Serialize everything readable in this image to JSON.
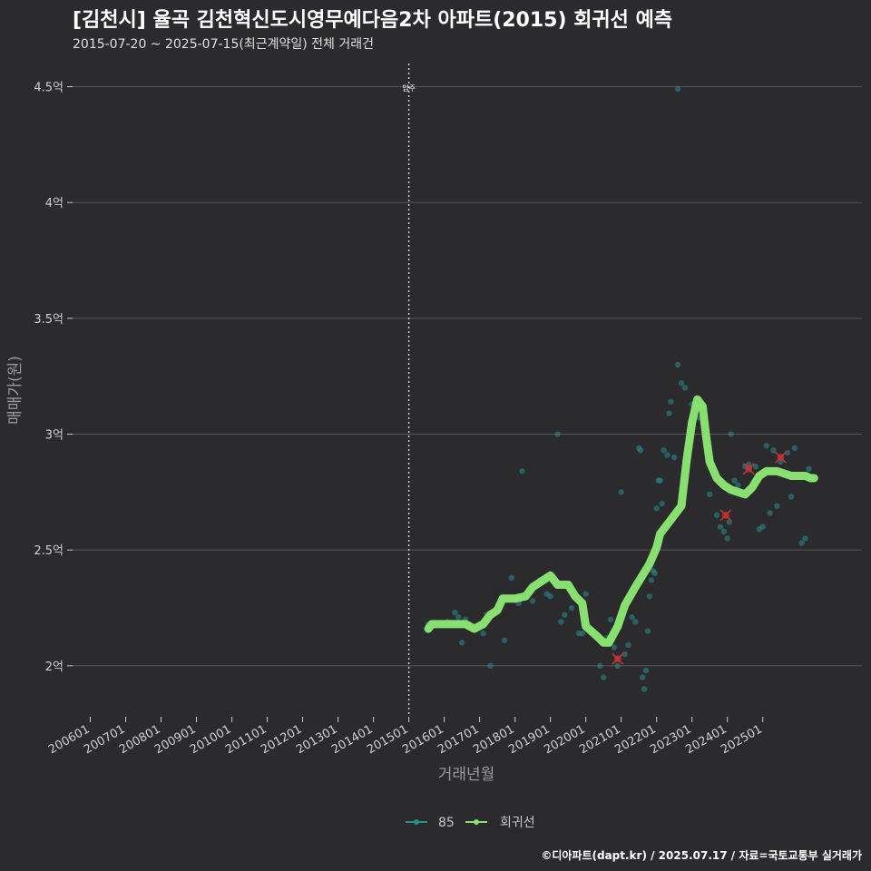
{
  "chart_data": {
    "type": "scatter",
    "title": "[김천시] 율곡 김천혁신도시영무예다음2차 아파트(2015) 회귀선 예측",
    "subtitle": "2015-07-20 ~ 2025-07-15(최근계약일) 전체 거래건",
    "xlabel": "거래년월",
    "ylabel": "매매가(원)",
    "caption": "©디아파트(dapt.kr) / 2025.07.17 / 자료=국토교통부 실거래가",
    "x_ticks": [
      "200601",
      "200701",
      "200801",
      "200901",
      "201001",
      "201101",
      "201201",
      "201301",
      "201401",
      "201501",
      "201601",
      "201701",
      "201801",
      "201901",
      "202001",
      "202101",
      "202201",
      "202301",
      "202401",
      "202501"
    ],
    "y_ticks": [
      {
        "value": 2.0,
        "label": "2억"
      },
      {
        "value": 2.5,
        "label": "2.5억"
      },
      {
        "value": 3.0,
        "label": "3억"
      },
      {
        "value": 3.5,
        "label": "3.5억"
      },
      {
        "value": 4.0,
        "label": "4억"
      },
      {
        "value": 4.5,
        "label": "4.5억"
      }
    ],
    "xlim": [
      2005.5,
      2027.8
    ],
    "ylim": [
      1.78,
      4.6
    ],
    "annotation": {
      "x": 2015.0,
      "label": "입주"
    },
    "legend": [
      "85",
      "회귀선"
    ],
    "colors": {
      "scatter": "#2a8c8c",
      "line": "#88e070",
      "highlight": "#cc3333",
      "grid": "#555555",
      "vline": "#cccccc"
    },
    "series": [
      {
        "name": "85",
        "points": [
          [
            2015.55,
            2.18
          ],
          [
            2015.8,
            2.18
          ],
          [
            2016.1,
            2.19
          ],
          [
            2016.3,
            2.23
          ],
          [
            2016.4,
            2.21
          ],
          [
            2016.5,
            2.1
          ],
          [
            2016.6,
            2.2
          ],
          [
            2016.7,
            2.18
          ],
          [
            2016.9,
            2.17
          ],
          [
            2017.1,
            2.14
          ],
          [
            2017.2,
            2.22
          ],
          [
            2017.3,
            2.0
          ],
          [
            2017.5,
            2.24
          ],
          [
            2017.7,
            2.11
          ],
          [
            2017.8,
            2.29
          ],
          [
            2017.9,
            2.38
          ],
          [
            2018.1,
            2.27
          ],
          [
            2018.2,
            2.84
          ],
          [
            2018.4,
            2.33
          ],
          [
            2018.5,
            2.28
          ],
          [
            2018.7,
            2.37
          ],
          [
            2018.9,
            2.31
          ],
          [
            2019.0,
            2.3
          ],
          [
            2019.2,
            3.0
          ],
          [
            2019.3,
            2.19
          ],
          [
            2019.4,
            2.22
          ],
          [
            2019.6,
            2.25
          ],
          [
            2019.8,
            2.14
          ],
          [
            2019.9,
            2.14
          ],
          [
            2020.0,
            2.31
          ],
          [
            2020.2,
            2.15
          ],
          [
            2020.3,
            2.12
          ],
          [
            2020.4,
            2.0
          ],
          [
            2020.5,
            1.95
          ],
          [
            2020.6,
            2.12
          ],
          [
            2020.7,
            2.2
          ],
          [
            2020.8,
            2.08
          ],
          [
            2020.9,
            2.0
          ],
          [
            2021.0,
            2.75
          ],
          [
            2021.1,
            2.05
          ],
          [
            2021.2,
            2.09
          ],
          [
            2021.3,
            2.21
          ],
          [
            2021.4,
            2.19
          ],
          [
            2021.5,
            2.94
          ],
          [
            2021.55,
            2.93
          ],
          [
            2021.6,
            1.95
          ],
          [
            2021.65,
            1.9
          ],
          [
            2021.7,
            1.98
          ],
          [
            2021.75,
            2.15
          ],
          [
            2021.8,
            2.3
          ],
          [
            2021.85,
            2.37
          ],
          [
            2021.9,
            2.41
          ],
          [
            2021.95,
            2.4
          ],
          [
            2022.0,
            2.68
          ],
          [
            2022.05,
            2.8
          ],
          [
            2022.1,
            2.8
          ],
          [
            2022.15,
            2.7
          ],
          [
            2022.2,
            2.93
          ],
          [
            2022.3,
            2.91
          ],
          [
            2022.35,
            3.09
          ],
          [
            2022.4,
            3.14
          ],
          [
            2022.5,
            2.9
          ],
          [
            2022.6,
            3.3
          ],
          [
            2022.7,
            3.22
          ],
          [
            2022.8,
            3.2
          ],
          [
            2023.0,
            3.13
          ],
          [
            2023.2,
            3.07
          ],
          [
            2023.3,
            3.05
          ],
          [
            2023.5,
            2.74
          ],
          [
            2023.7,
            2.65
          ],
          [
            2023.8,
            2.6
          ],
          [
            2023.9,
            2.58
          ],
          [
            2024.0,
            2.55
          ],
          [
            2024.05,
            2.62
          ],
          [
            2024.1,
            3.0
          ],
          [
            2024.2,
            2.8
          ],
          [
            2024.3,
            2.78
          ],
          [
            2024.5,
            2.86
          ],
          [
            2024.6,
            2.87
          ],
          [
            2024.8,
            2.86
          ],
          [
            2024.9,
            2.59
          ],
          [
            2025.0,
            2.6
          ],
          [
            2025.1,
            2.95
          ],
          [
            2025.2,
            2.66
          ],
          [
            2025.3,
            2.93
          ],
          [
            2025.4,
            2.69
          ],
          [
            2025.5,
            2.88
          ],
          [
            2025.7,
            2.92
          ],
          [
            2025.8,
            2.73
          ],
          [
            2025.9,
            2.94
          ],
          [
            2026.1,
            2.53
          ],
          [
            2026.2,
            2.55
          ],
          [
            2026.3,
            2.85
          ],
          [
            2026.4,
            2.81
          ],
          [
            2022.6,
            4.49
          ]
        ]
      },
      {
        "name": "회귀선",
        "points": [
          [
            2015.55,
            2.16
          ],
          [
            2015.65,
            2.18
          ],
          [
            2016.0,
            2.18
          ],
          [
            2016.3,
            2.18
          ],
          [
            2016.6,
            2.18
          ],
          [
            2016.85,
            2.16
          ],
          [
            2017.1,
            2.18
          ],
          [
            2017.3,
            2.22
          ],
          [
            2017.5,
            2.24
          ],
          [
            2017.65,
            2.29
          ],
          [
            2018.0,
            2.29
          ],
          [
            2018.3,
            2.3
          ],
          [
            2018.5,
            2.34
          ],
          [
            2018.8,
            2.37
          ],
          [
            2019.0,
            2.39
          ],
          [
            2019.2,
            2.35
          ],
          [
            2019.5,
            2.35
          ],
          [
            2019.7,
            2.3
          ],
          [
            2019.9,
            2.27
          ],
          [
            2020.0,
            2.17
          ],
          [
            2020.3,
            2.13
          ],
          [
            2020.5,
            2.1
          ],
          [
            2020.65,
            2.1
          ],
          [
            2020.9,
            2.17
          ],
          [
            2021.1,
            2.26
          ],
          [
            2021.4,
            2.34
          ],
          [
            2021.6,
            2.39
          ],
          [
            2021.8,
            2.44
          ],
          [
            2022.0,
            2.51
          ],
          [
            2022.1,
            2.57
          ],
          [
            2022.4,
            2.63
          ],
          [
            2022.7,
            2.69
          ],
          [
            2022.85,
            2.89
          ],
          [
            2023.0,
            3.05
          ],
          [
            2023.15,
            3.15
          ],
          [
            2023.3,
            3.12
          ],
          [
            2023.4,
            2.99
          ],
          [
            2023.5,
            2.88
          ],
          [
            2023.7,
            2.81
          ],
          [
            2023.9,
            2.78
          ],
          [
            2024.1,
            2.76
          ],
          [
            2024.3,
            2.75
          ],
          [
            2024.5,
            2.74
          ],
          [
            2024.7,
            2.77
          ],
          [
            2024.9,
            2.82
          ],
          [
            2025.1,
            2.84
          ],
          [
            2025.4,
            2.84
          ],
          [
            2025.6,
            2.83
          ],
          [
            2025.8,
            2.82
          ],
          [
            2026.0,
            2.82
          ],
          [
            2026.2,
            2.82
          ],
          [
            2026.35,
            2.81
          ],
          [
            2026.45,
            2.81
          ]
        ]
      }
    ],
    "highlights": [
      [
        2020.9,
        2.03
      ],
      [
        2023.95,
        2.65
      ],
      [
        2024.6,
        2.85
      ],
      [
        2025.5,
        2.9
      ]
    ]
  }
}
